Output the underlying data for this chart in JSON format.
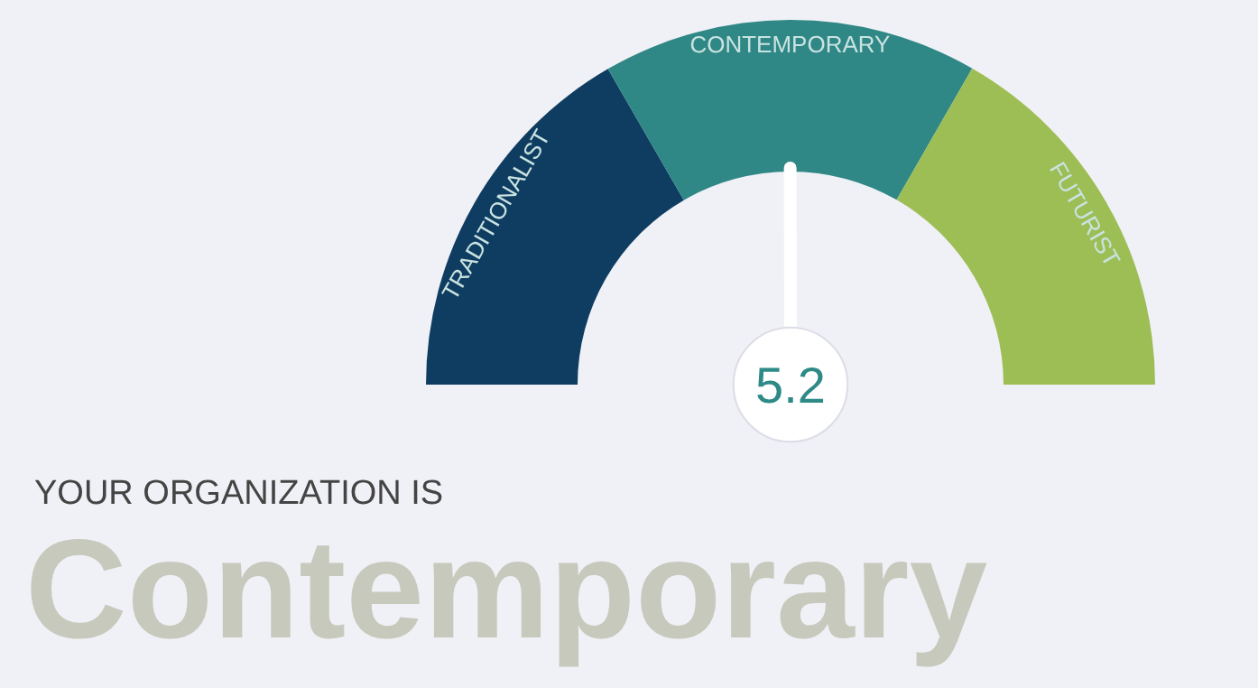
{
  "chart_data": {
    "type": "donut",
    "title": "YOUR ORGANIZATION IS",
    "subtitle": "Contemporary",
    "categories": [
      "TRADITIONALIST",
      "CONTEMPORARY",
      "FUTURIST"
    ],
    "values": [
      33.3,
      33.3,
      33.4
    ],
    "colors": [
      "#0f3d62",
      "#2f8786",
      "#9dbd55"
    ],
    "needle": "CONTEMPORARY",
    "annotations": [
      "5.2"
    ]
  }
}
